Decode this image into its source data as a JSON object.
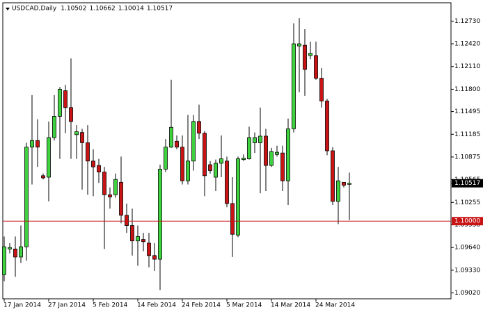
{
  "chart_data": {
    "type": "candlestick",
    "title": "USDCAD,Daily",
    "categories": [
      "17 Jan 2014",
      null,
      null,
      null,
      null,
      null,
      null,
      null,
      "27 Jan 2014",
      null,
      null,
      null,
      null,
      null,
      null,
      null,
      "5 Feb 2014",
      null,
      null,
      null,
      null,
      null,
      null,
      null,
      "14 Feb 2014",
      null,
      null,
      null,
      null,
      null,
      null,
      null,
      "24 Feb 2014",
      null,
      null,
      null,
      null,
      null,
      null,
      null,
      "5 Mar 2014",
      null,
      null,
      null,
      null,
      null,
      null,
      null,
      "14 Mar 2014",
      null,
      null,
      null,
      null,
      null,
      null,
      null,
      "24 Mar 2014",
      null,
      null,
      null,
      null,
      null,
      null
    ],
    "open": [
      1.0927,
      1.0962,
      1.0962,
      1.0951,
      1.0965,
      1.1101,
      1.111,
      1.1062,
      1.106,
      1.1114,
      1.1143,
      1.1178,
      1.1155,
      1.1118,
      1.1121,
      1.1107,
      1.1082,
      1.1076,
      1.1067,
      1.1036,
      1.1036,
      1.1053,
      1.1008,
      1.0994,
      1.0973,
      1.0975,
      1.097,
      1.0953,
      1.0948,
      1.1071,
      1.1101,
      1.1109,
      1.1101,
      1.1055,
      1.1082,
      1.1136,
      1.112,
      1.1077,
      1.106,
      1.1079,
      1.1082,
      1.1024,
      1.0981,
      1.1084,
      1.1085,
      1.1107,
      1.1107,
      1.1116,
      1.1076,
      1.1091,
      1.1093,
      1.1055,
      1.1126,
      1.1239,
      1.124,
      1.1226,
      1.1226,
      1.1195,
      1.1164,
      1.1096,
      1.1027,
      1.1053,
      1.10502
    ],
    "high": [
      1.0979,
      1.097,
      1.0979,
      1.0994,
      1.1107,
      1.1172,
      1.1139,
      1.1065,
      1.1136,
      1.1172,
      1.1183,
      1.1186,
      1.1222,
      1.1131,
      1.1126,
      1.1131,
      1.1098,
      1.1085,
      1.1074,
      1.1046,
      1.1065,
      1.1088,
      1.1024,
      1.1017,
      1.0994,
      1.0984,
      1.0984,
      1.097,
      1.1077,
      1.1112,
      1.1193,
      1.1117,
      1.1117,
      1.1145,
      1.1145,
      1.1159,
      1.1123,
      1.1082,
      1.1084,
      1.1117,
      1.1088,
      1.106,
      1.1088,
      1.1091,
      1.1129,
      1.1121,
      1.1155,
      1.1126,
      1.11,
      1.1103,
      1.1103,
      1.114,
      1.127,
      1.1277,
      1.1262,
      1.1245,
      1.1245,
      1.1209,
      1.1167,
      1.1101,
      1.1074,
      1.1053,
      1.10662
    ],
    "low": [
      1.0918,
      1.0956,
      1.0924,
      1.0943,
      1.0946,
      1.105,
      1.1074,
      1.1057,
      1.1027,
      1.111,
      1.1085,
      1.112,
      1.1085,
      1.1085,
      1.1043,
      1.1036,
      1.1034,
      1.1052,
      1.0962,
      1.1017,
      1.1032,
      1.0997,
      1.0984,
      1.0953,
      1.0939,
      1.0959,
      1.0937,
      1.0932,
      1.0906,
      1.1067,
      1.11,
      1.1098,
      1.105,
      1.105,
      1.1069,
      1.1112,
      1.1034,
      1.1065,
      1.1041,
      1.106,
      1.1019,
      1.0951,
      1.0978,
      1.1082,
      1.1084,
      1.1093,
      1.1038,
      1.1041,
      1.1074,
      1.1088,
      1.1041,
      1.1022,
      1.1121,
      1.1176,
      1.1171,
      1.1221,
      1.1193,
      1.1155,
      1.109,
      1.1022,
      1.0996,
      1.1046,
      1.10014
    ],
    "close": [
      1.0965,
      1.0964,
      1.0951,
      1.0965,
      1.1101,
      1.111,
      1.1101,
      1.1059,
      1.1114,
      1.1143,
      1.118,
      1.1155,
      1.1136,
      1.1122,
      1.1107,
      1.1082,
      1.1074,
      1.1067,
      1.1036,
      1.1033,
      1.1057,
      1.1008,
      1.0994,
      1.0973,
      1.0979,
      1.0972,
      1.0953,
      1.0948,
      1.1071,
      1.1101,
      1.1128,
      1.1101,
      1.1055,
      1.1082,
      1.1136,
      1.112,
      1.1062,
      1.1069,
      1.1079,
      1.1085,
      1.1024,
      1.0982,
      1.1085,
      1.1086,
      1.1114,
      1.1114,
      1.1116,
      1.1076,
      1.1095,
      1.1094,
      1.1055,
      1.1126,
      1.1242,
      1.1242,
      1.1207,
      1.1229,
      1.1195,
      1.1164,
      1.1096,
      1.1027,
      1.1055,
      1.1049,
      1.10517
    ],
    "up_color": "#3fd23f",
    "down_color": "#c81414",
    "wick_color": "#000000",
    "ylim": [
      1.0894,
      1.1298
    ],
    "yticks": [
      {
        "value": 1.0902,
        "label": "1.09020"
      },
      {
        "value": 1.0933,
        "label": "1.09330"
      },
      {
        "value": 1.0964,
        "label": "1.09640"
      },
      {
        "value": 1.0995,
        "label": "1.09950"
      },
      1.10255,
      1.10565,
      1.10875,
      1.11185,
      1.11495,
      {
        "value": 1.118,
        "label": "1.11800"
      },
      {
        "value": 1.1211,
        "label": "1.12110"
      },
      {
        "value": 1.1242,
        "label": "1.12420"
      },
      {
        "value": 1.1273,
        "label": "1.12730"
      }
    ],
    "level": {
      "value": 1.1,
      "label": "1.10000",
      "color": "#c81414"
    },
    "grid": false
  }
}
